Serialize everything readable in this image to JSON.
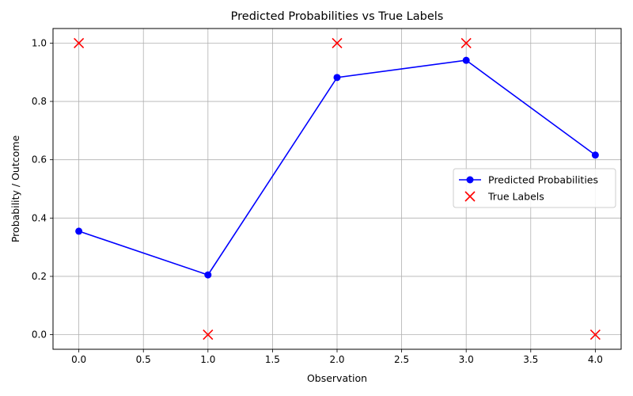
{
  "chart_data": {
    "type": "line",
    "title": "Predicted Probabilities vs True Labels",
    "xlabel": "Observation",
    "ylabel": "Probability / Outcome",
    "xlim": [
      -0.2,
      4.2
    ],
    "ylim": [
      -0.05,
      1.05
    ],
    "xticks": [
      0.0,
      0.5,
      1.0,
      1.5,
      2.0,
      2.5,
      3.0,
      3.5,
      4.0
    ],
    "xtick_labels": [
      "0.0",
      "0.5",
      "1.0",
      "1.5",
      "2.0",
      "2.5",
      "3.0",
      "3.5",
      "4.0"
    ],
    "yticks": [
      0.0,
      0.2,
      0.4,
      0.6,
      0.8,
      1.0
    ],
    "ytick_labels": [
      "0.0",
      "0.2",
      "0.4",
      "0.6",
      "0.8",
      "1.0"
    ],
    "grid": true,
    "legend_position": "center-right",
    "x": [
      0,
      1,
      2,
      3,
      4
    ],
    "series": [
      {
        "name": "Predicted Probabilities",
        "kind": "line-marker",
        "color": "#0000ff",
        "values": [
          0.355,
          0.205,
          0.882,
          0.941,
          0.616
        ]
      },
      {
        "name": "True Labels",
        "kind": "scatter-x",
        "color": "#ff0000",
        "values": [
          1,
          0,
          1,
          1,
          0
        ]
      }
    ]
  }
}
